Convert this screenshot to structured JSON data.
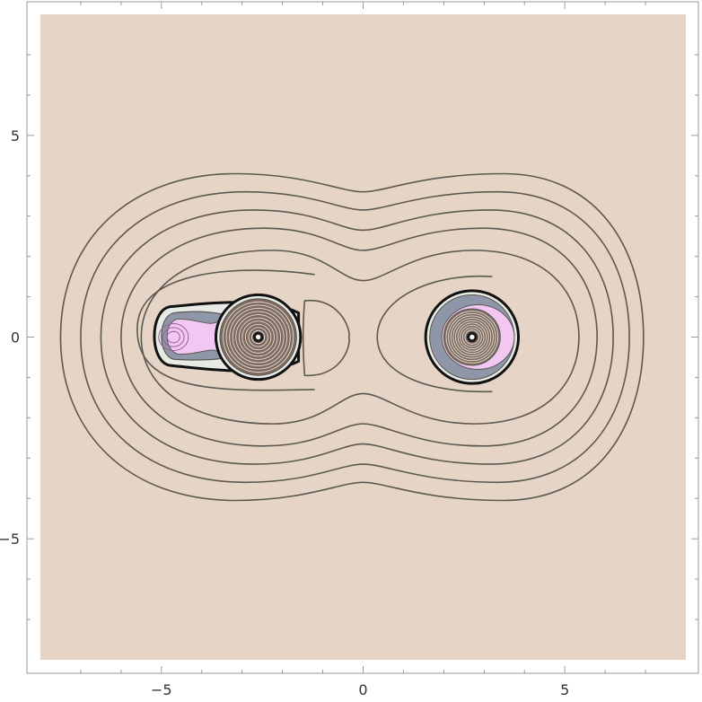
{
  "chart_data": {
    "type": "contour",
    "title": "",
    "xlabel": "",
    "ylabel": "",
    "xlim": [
      -8,
      8
    ],
    "ylim": [
      -8,
      8
    ],
    "frame": true,
    "grid": false,
    "legend": "none",
    "x_ticks": [
      {
        "value": -5,
        "label": "−5"
      },
      {
        "value": 0,
        "label": "0"
      },
      {
        "value": 5,
        "label": "5"
      }
    ],
    "y_ticks": [
      {
        "value": 5,
        "label": "5"
      },
      {
        "value": 0,
        "label": "0"
      },
      {
        "value": -5,
        "label": "−5"
      }
    ],
    "minor_ticks": [
      -7,
      -6,
      -4,
      -3,
      -2,
      -1,
      1,
      2,
      3,
      4,
      6,
      7
    ],
    "centers": [
      {
        "name": "left-star",
        "x": -2.6,
        "y": 0
      },
      {
        "name": "right-star",
        "x": 2.7,
        "y": 0
      }
    ],
    "background_color": "#e6d5c6",
    "line_color": "#5c5852",
    "fill_colors": {
      "pink": "#f2c8f2",
      "slate": "#8f96a8",
      "light": "#e7ebe6",
      "core": "#7d6b60",
      "dark": "#1a1a1a"
    },
    "outer_contours": [
      {
        "x0": -7.5,
        "x1": 6.95,
        "ytop": 4.05,
        "ybot": 4.05,
        "neck": 0.45
      },
      {
        "x0": -7.0,
        "x1": 6.6,
        "ytop": 3.6,
        "ybot": 3.6,
        "neck": 0.45
      },
      {
        "x0": -6.5,
        "x1": 6.2,
        "ytop": 3.15,
        "ybot": 3.15,
        "neck": 0.5
      },
      {
        "x0": -6.0,
        "x1": 5.8,
        "ytop": 2.7,
        "ybot": 2.7,
        "neck": 0.55
      },
      {
        "x0": -5.5,
        "x1": 5.35,
        "ytop": 2.15,
        "ybot": 2.15,
        "neck": 0.75
      }
    ]
  }
}
